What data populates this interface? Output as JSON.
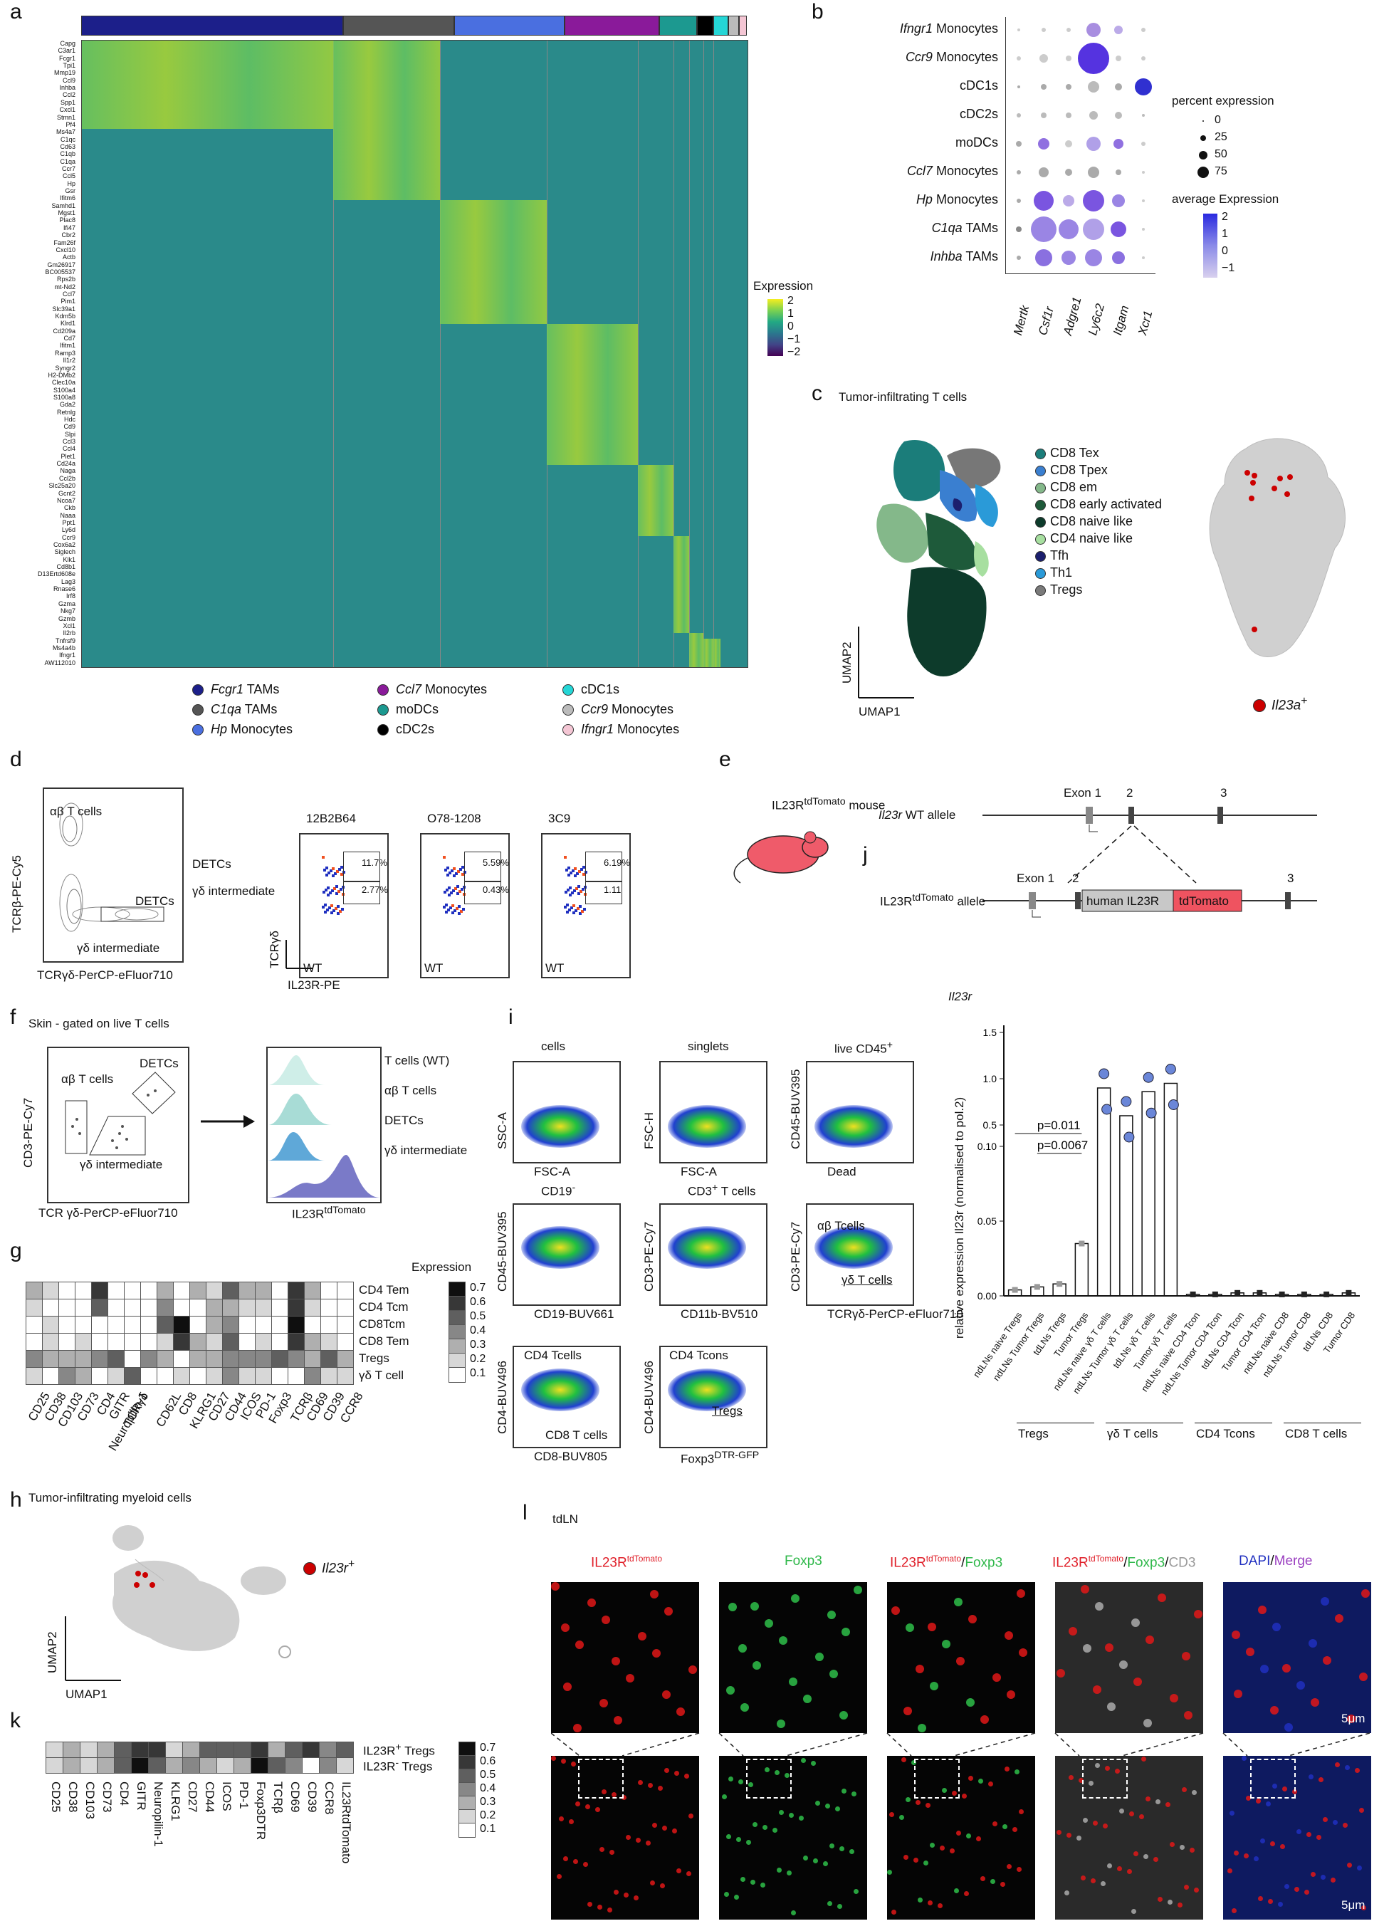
{
  "panels": {
    "a": "a",
    "b": "b",
    "c": "c",
    "d": "d",
    "e": "e",
    "f": "f",
    "g": "g",
    "h": "h",
    "i": "i",
    "j": "j",
    "k": "k",
    "l": "l"
  },
  "a": {
    "genes": [
      "Capg",
      "C3ar1",
      "Fcgr1",
      "Tpi1",
      "Mmp19",
      "Ccl9",
      "Inhba",
      "Ccl2",
      "Spp1",
      "Cxcl1",
      "Stmn1",
      "Pf4",
      "Ms4a7",
      "C1qc",
      "Cd63",
      "C1qb",
      "C1qa",
      "Ccr7",
      "Ccl5",
      "Hp",
      "Gsr",
      "Ifitm6",
      "Samhd1",
      "Mgst1",
      "Plac8",
      "Ifi47",
      "Cbr2",
      "Fam26f",
      "Cxcl10",
      "Actb",
      "Gm26917",
      "BC005537",
      "Rps2b",
      "mt-Nd2",
      "Ccl7",
      "Pim1",
      "Slc39a1",
      "Kdm5b",
      "Klrd1",
      "Cd209a",
      "Cd7",
      "Ifitm1",
      "Ramp3",
      "Il1r2",
      "Syngr2",
      "H2-DMb2",
      "Clec10a",
      "S100a4",
      "S100a8",
      "Gda2",
      "Retnlg",
      "Hdc",
      "Cd9",
      "Slpi",
      "Ccl3",
      "Ccl4",
      "Plet1",
      "Cd24a",
      "Naga",
      "Ccl2b",
      "Slc25a20",
      "Gcnt2",
      "Ncoa7",
      "Ckb",
      "Naaa",
      "Ppt1",
      "Ly6d",
      "Ccr9",
      "Cox6a2",
      "Siglech",
      "Klk1",
      "Cd8b1",
      "D13Ertd608e",
      "Lag3",
      "Rnase6",
      "Irf8",
      "Gzma",
      "Nkg7",
      "Gzmb",
      "Xcl1",
      "Il2rb",
      "Tnfrsf9",
      "Ms4a4b",
      "Ifngr1",
      "AW112010"
    ],
    "colorbar_title": "Expression",
    "colorbar_ticks": [
      "2",
      "1",
      "0",
      "−1",
      "−2"
    ],
    "legend": [
      {
        "label": "Fcgr1",
        "suffix": " TAMs",
        "italic": true,
        "color": "#1c1f8a"
      },
      {
        "label": "C1qa",
        "suffix": " TAMs",
        "italic": true,
        "color": "#555555"
      },
      {
        "label": "Hp",
        "suffix": " Monocytes",
        "italic": true,
        "color": "#4a6fe0"
      },
      {
        "label": "Ccl7",
        "suffix": " Monocytes",
        "italic": true,
        "color": "#8a1a9a"
      },
      {
        "label": "moDCs",
        "suffix": "",
        "italic": false,
        "color": "#1c9990"
      },
      {
        "label": "cDC2s",
        "suffix": "",
        "italic": false,
        "color": "#000000"
      },
      {
        "label": "cDC1s",
        "suffix": "",
        "italic": false,
        "color": "#25d6d6"
      },
      {
        "label": "Ccr9",
        "suffix": " Monocytes",
        "italic": true,
        "color": "#bbbbbb"
      },
      {
        "label": "Ifngr1",
        "suffix": " Monocytes",
        "italic": true,
        "color": "#f4c6d4"
      }
    ],
    "cluster_colors": [
      "#1c1f8a",
      "#555555",
      "#4a6fe0",
      "#8a1a9a",
      "#1c9990",
      "#000000",
      "#25d6d6",
      "#bbbbbb",
      "#f4c6d4"
    ]
  },
  "b": {
    "rows": [
      {
        "label": "Ifngr1",
        "suffix": " Monocytes",
        "italic": true
      },
      {
        "label": "Ccr9",
        "suffix": " Monocytes",
        "italic": true
      },
      {
        "label": "cDC1s",
        "suffix": "",
        "italic": false
      },
      {
        "label": "cDC2s",
        "suffix": "",
        "italic": false
      },
      {
        "label": "moDCs",
        "suffix": "",
        "italic": false
      },
      {
        "label": "Ccl7",
        "suffix": " Monocytes",
        "italic": true
      },
      {
        "label": "Hp",
        "suffix": " Monocytes",
        "italic": true
      },
      {
        "label": "C1qa",
        "suffix": " TAMs",
        "italic": true
      },
      {
        "label": "Inhba",
        "suffix": " TAMs",
        "italic": true
      }
    ],
    "genes": [
      "Mertk",
      "Csf1r",
      "Adgre1",
      "Ly6c2",
      "Itgam",
      "Xcr1"
    ],
    "percent_title": "percent expression",
    "percent_ticks": [
      "0",
      "25",
      "50",
      "75"
    ],
    "avg_title": "average Expression",
    "avg_ticks": [
      "2",
      "1",
      "0",
      "−1"
    ]
  },
  "c": {
    "title": "Tumor-infiltrating T cells",
    "legend": [
      {
        "label": "CD8 Tex",
        "color": "#1b7d7a"
      },
      {
        "label": "CD8 Tpex",
        "color": "#3a7fd0"
      },
      {
        "label": "CD8 em",
        "color": "#84b88a"
      },
      {
        "label": "CD8 early activated",
        "color": "#1e5a3a"
      },
      {
        "label": "CD8 naive like",
        "color": "#0d3b2b"
      },
      {
        "label": "CD4 naive like",
        "color": "#a7dfa0"
      },
      {
        "label": "Tfh",
        "color": "#1c1f6e"
      },
      {
        "label": "Th1",
        "color": "#2a9ad8"
      },
      {
        "label": "Tregs",
        "color": "#7a7a7a"
      }
    ],
    "umap1": "UMAP1",
    "umap2": "UMAP2",
    "il23a_label": "Il23a",
    "il23a_sup": "+"
  },
  "d": {
    "ylabel": "TCRβ-PE-Cy5",
    "xlabel": "TCRγδ-PerCP-eFluor710",
    "ab_label": "αβ T cells",
    "detc_label": "DETCs",
    "gd_label": "γδ intermediate",
    "plots": [
      {
        "title": "12B2B64",
        "top": "11.7%",
        "bottom": "2.77%",
        "tag": "WT"
      },
      {
        "title": "O78-1208",
        "top": "5.59%",
        "bottom": "0.43%",
        "tag": "WT"
      },
      {
        "title": "3C9",
        "top": "6.19%",
        "bottom": "1.11",
        "tag": "WT"
      }
    ],
    "left_top": "DETCs",
    "left_bottom": "γδ intermediate",
    "axis_y": "TCRγδ",
    "axis_x": "IL23R-PE"
  },
  "e": {
    "mouse_label": "IL23R",
    "mouse_sup": "tdTomato",
    "mouse_suffix": " mouse",
    "wt_italic": "Il23r",
    "wt_suffix": " WT allele",
    "td_label": "IL23R",
    "td_sup": "tdTomato",
    "td_suffix": " allele",
    "exon1": "Exon 1",
    "exon1b": "Exon 1",
    "n2": "2",
    "n3": "3",
    "n2b": "2",
    "n3b": "3",
    "human_box": "human IL23R",
    "tomato_box": "tdTomato"
  },
  "f": {
    "title": "Skin - gated on live T cells",
    "ylabel": "CD3-PE-Cy7",
    "xlabel": "TCR γδ-PerCP-eFluor710",
    "ab": "αβ T cells",
    "detc": "DETCs",
    "gd": "γδ intermediate",
    "hist_x": "IL23R",
    "hist_x_sup": "tdTomato",
    "tracks": [
      "T cells (WT)",
      "αβ T cells",
      "DETCs",
      "γδ intermediate"
    ]
  },
  "g": {
    "columns": [
      "CD25",
      "CD38",
      "CD103",
      "CD73",
      "CD4",
      "GITR",
      "TCRγδ",
      "Neuropilin-1",
      "CD62L",
      "CD8",
      "KLRG1",
      "CD27",
      "CD44",
      "ICOS",
      "PD-1",
      "Foxp3",
      "TCRβ",
      "CD69",
      "CD39",
      "CCR8"
    ],
    "rows": [
      "CD4 Tem",
      "CD4 Tcm",
      "CD8Tcm",
      "CD8 Tem",
      "Tregs",
      "γδ T cell"
    ],
    "matrix": [
      [
        0.3,
        0.2,
        0.1,
        0.1,
        0.6,
        0.1,
        0.1,
        0.1,
        0.3,
        0.1,
        0.3,
        0.2,
        0.5,
        0.3,
        0.3,
        0.1,
        0.6,
        0.3,
        0.1,
        0.1
      ],
      [
        0.2,
        0.1,
        0.1,
        0.1,
        0.5,
        0.1,
        0.1,
        0.1,
        0.4,
        0.1,
        0.1,
        0.3,
        0.3,
        0.2,
        0.2,
        0.1,
        0.6,
        0.2,
        0.1,
        0.1
      ],
      [
        0.1,
        0.2,
        0.1,
        0.1,
        0.1,
        0.1,
        0.1,
        0.1,
        0.5,
        0.7,
        0.1,
        0.3,
        0.4,
        0.1,
        0.1,
        0.1,
        0.7,
        0.1,
        0.1,
        0.1
      ],
      [
        0.1,
        0.2,
        0.1,
        0.2,
        0.1,
        0.1,
        0.1,
        0.1,
        0.2,
        0.6,
        0.3,
        0.2,
        0.5,
        0.1,
        0.2,
        0.1,
        0.6,
        0.3,
        0.2,
        0.1
      ],
      [
        0.4,
        0.3,
        0.3,
        0.3,
        0.4,
        0.5,
        0.1,
        0.4,
        0.3,
        0.1,
        0.3,
        0.3,
        0.4,
        0.4,
        0.4,
        0.5,
        0.4,
        0.3,
        0.5,
        0.3
      ],
      [
        0.2,
        0.1,
        0.4,
        0.3,
        0.1,
        0.2,
        0.5,
        0.1,
        0.1,
        0.2,
        0.1,
        0.2,
        0.4,
        0.2,
        0.2,
        0.1,
        0.1,
        0.4,
        0.2,
        0.2
      ]
    ],
    "legend_title": "Expression",
    "legend_ticks": [
      "0.7",
      "0.6",
      "0.5",
      "0.4",
      "0.3",
      "0.2",
      "0.1"
    ]
  },
  "h": {
    "title": "Tumor-infiltrating myeloid cells",
    "label": "Il23r",
    "label_sup": "+",
    "umap1": "UMAP1",
    "umap2": "UMAP2"
  },
  "i": {
    "plots": [
      {
        "title": "cells",
        "x": "FSC-A",
        "y": "SSC-A"
      },
      {
        "title": "singlets",
        "x": "FSC-A",
        "y": "FSC-H"
      },
      {
        "title": "live CD45",
        "title_sup": "+",
        "x": "Dead",
        "y": "CD45-BUV395"
      },
      {
        "title": "CD19",
        "title_sup": "-",
        "x": "CD19-BUV661",
        "y": "CD45-BUV395"
      },
      {
        "title": "CD3",
        "title_sup": "+",
        "title_suffix": " T cells",
        "x": "CD11b-BV510",
        "y": "CD3-PE-Cy7"
      },
      {
        "title": "",
        "x": "TCRγδ-PerCP-eFluor710",
        "y": "CD3-PE-Cy7"
      },
      {
        "title": "",
        "x": "CD8-BUV805",
        "y": "CD4-BUV496"
      },
      {
        "title": "",
        "x": "Foxp3",
        "x_sup": "DTR-GFP",
        "y": "CD4-BUV496"
      }
    ],
    "gate_ab": "αβ Tcells",
    "gate_gd": "γδ T cells",
    "gate_cd4": "CD4 Tcells",
    "gate_cd8": "CD8 T cells",
    "gate_tcons": "CD4 Tcons",
    "gate_tregs": "Tregs"
  },
  "j": {
    "title": "Il23r",
    "ylabel": "relative expression Il23r (normalised to pol.2)",
    "upper_ticks": [
      "1.5",
      "1.0",
      "0.5"
    ],
    "lower_ticks": [
      "0.10",
      "0.05",
      "0.00"
    ],
    "p1": "p=0.011",
    "p2": "p=0.0067",
    "categories": [
      "ndLNs naive Tregs",
      "ndLNs Tumor Tregs",
      "tdLNs Tregs",
      "Tumor Tregs",
      "ndLNs naive γδ T cells",
      "ndLNs Tumor γδ T cells",
      "tdLNs γδ T cells",
      "Tumor γδ T cells",
      "ndLNs naive CD4 Tcon",
      "ndLNs Tumor CD4 Tcon",
      "tdLNs CD4 Tcon",
      "Tumor CD4 Tcon",
      "ndLNs naive CD8",
      "ndLNs Tumor CD8",
      "tdLNs CD8",
      "Tumor CD8"
    ],
    "means": [
      0.004,
      0.006,
      0.008,
      0.035,
      0.9,
      0.6,
      0.86,
      0.95,
      0.001,
      0.001,
      0.002,
      0.002,
      0.001,
      0.001,
      0.001,
      0.002
    ],
    "groups": [
      "Tregs",
      "γδ T cells",
      "CD4 Tcons",
      "CD8 T cells"
    ]
  },
  "k": {
    "columns": [
      "CD25",
      "CD38",
      "CD103",
      "CD73",
      "CD4",
      "GITR",
      "Neuropilin-1",
      "KLRG1",
      "CD27",
      "CD44",
      "ICOS",
      "PD-1",
      "Foxp3DTR",
      "TCRβ",
      "CD69",
      "CD39",
      "CCR8",
      "IL23RtdTomato"
    ],
    "rows_html": [
      {
        "a": "IL23R",
        "sup": "+",
        "b": " Tregs"
      },
      {
        "a": "IL23R",
        "sup": "-",
        "b": " Tregs"
      }
    ],
    "matrix": [
      [
        0.2,
        0.3,
        0.2,
        0.3,
        0.5,
        0.6,
        0.6,
        0.2,
        0.3,
        0.5,
        0.5,
        0.5,
        0.6,
        0.3,
        0.5,
        0.6,
        0.4,
        0.5
      ],
      [
        0.2,
        0.3,
        0.2,
        0.3,
        0.5,
        0.7,
        0.5,
        0.3,
        0.4,
        0.3,
        0.2,
        0.3,
        0.7,
        0.5,
        0.4,
        0.1,
        0.4,
        0.2
      ]
    ],
    "legend_ticks": [
      "0.7",
      "0.6",
      "0.5",
      "0.4",
      "0.3",
      "0.2",
      "0.1"
    ]
  },
  "l": {
    "title": "tdLN",
    "headers": [
      {
        "parts": [
          {
            "t": "IL23R",
            "c": "#e0202a"
          },
          {
            "t": "tdTomato",
            "c": "#e0202a",
            "sup": true
          }
        ]
      },
      {
        "parts": [
          {
            "t": "Foxp3",
            "c": "#2fb84a"
          }
        ]
      },
      {
        "parts": [
          {
            "t": "IL23R",
            "c": "#e0202a"
          },
          {
            "t": "tdTomato",
            "c": "#e0202a",
            "sup": true
          },
          {
            "t": "/",
            "c": "#111"
          },
          {
            "t": "Foxp3",
            "c": "#2fb84a"
          }
        ]
      },
      {
        "parts": [
          {
            "t": "IL23R",
            "c": "#e0202a"
          },
          {
            "t": "tdTomato",
            "c": "#e0202a",
            "sup": true
          },
          {
            "t": "/",
            "c": "#111"
          },
          {
            "t": "Foxp3",
            "c": "#2fb84a"
          },
          {
            "t": "/",
            "c": "#111"
          },
          {
            "t": "CD3",
            "c": "#999"
          }
        ]
      },
      {
        "parts": [
          {
            "t": "DAPI",
            "c": "#2030c0"
          },
          {
            "t": "/",
            "c": "#111"
          },
          {
            "t": "Merge",
            "c": "#9a3fc0"
          }
        ]
      }
    ],
    "scale": "5μm",
    "scale2": "5μm"
  }
}
